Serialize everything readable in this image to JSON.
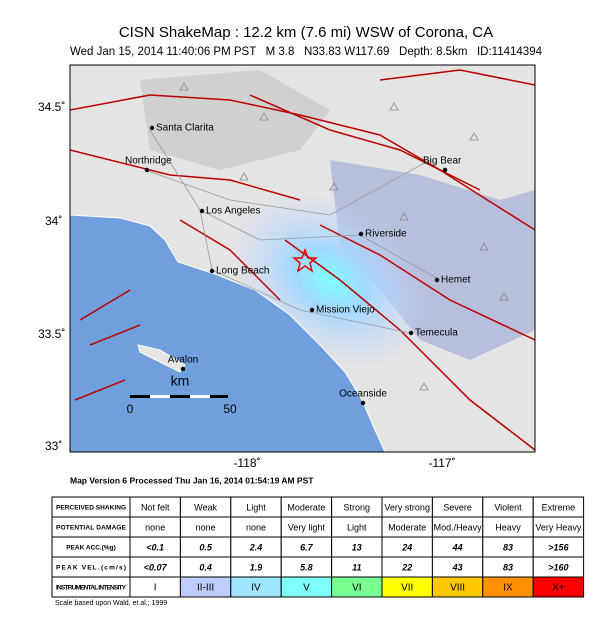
{
  "header": {
    "title": "CISN ShakeMap : 12.2 km (7.6 mi) WSW of Corona, CA",
    "subtitle": "Wed Jan 15, 2014 11:40:06 PM PST   M 3.8   N33.83 W117.69   Depth: 8.5km   ID:11414394"
  },
  "map": {
    "lat_labels": [
      "34.5˚",
      "34˚",
      "33.5˚",
      "33˚"
    ],
    "lon_labels": [
      "-118˚",
      "-117˚"
    ],
    "cities": [
      "Santa Clarita",
      "Northridge",
      "Big Bear",
      "Los Angeles",
      "Riverside",
      "Long Beach",
      "Hemet",
      "Mission Viejo",
      "Temecula",
      "Avalon",
      "Oceanside"
    ],
    "scale": {
      "unit": "km",
      "labels": [
        "0",
        "50"
      ]
    }
  },
  "version": "Map Version 6 Processed Thu Jan 16, 2014 01:54:19 AM PST",
  "table": {
    "rows": [
      [
        "PERCEIVED SHAKING",
        "Not felt",
        "Weak",
        "Light",
        "Moderate",
        "Strong",
        "Very strong",
        "Severe",
        "Violent",
        "Extreme"
      ],
      [
        "POTENTIAL DAMAGE",
        "none",
        "none",
        "none",
        "Very light",
        "Light",
        "Moderate",
        "Mod./Heavy",
        "Heavy",
        "Very Heavy"
      ],
      [
        "PEAK ACC.(%g)",
        "<0.1",
        "0.5",
        "2.4",
        "6.7",
        "13",
        "24",
        "44",
        "83",
        ">156"
      ],
      [
        "PEAK VEL.(cm/s)",
        "<0.07",
        "0.4",
        "1.9",
        "5.8",
        "11",
        "22",
        "43",
        "83",
        ">160"
      ],
      [
        "INSTRUMENTAL INTENSITY",
        "I",
        "II-III",
        "IV",
        "V",
        "VI",
        "VII",
        "VIII",
        "IX",
        "X+"
      ]
    ]
  },
  "footnote": "Scale based upon Wald, et al.; 1999"
}
